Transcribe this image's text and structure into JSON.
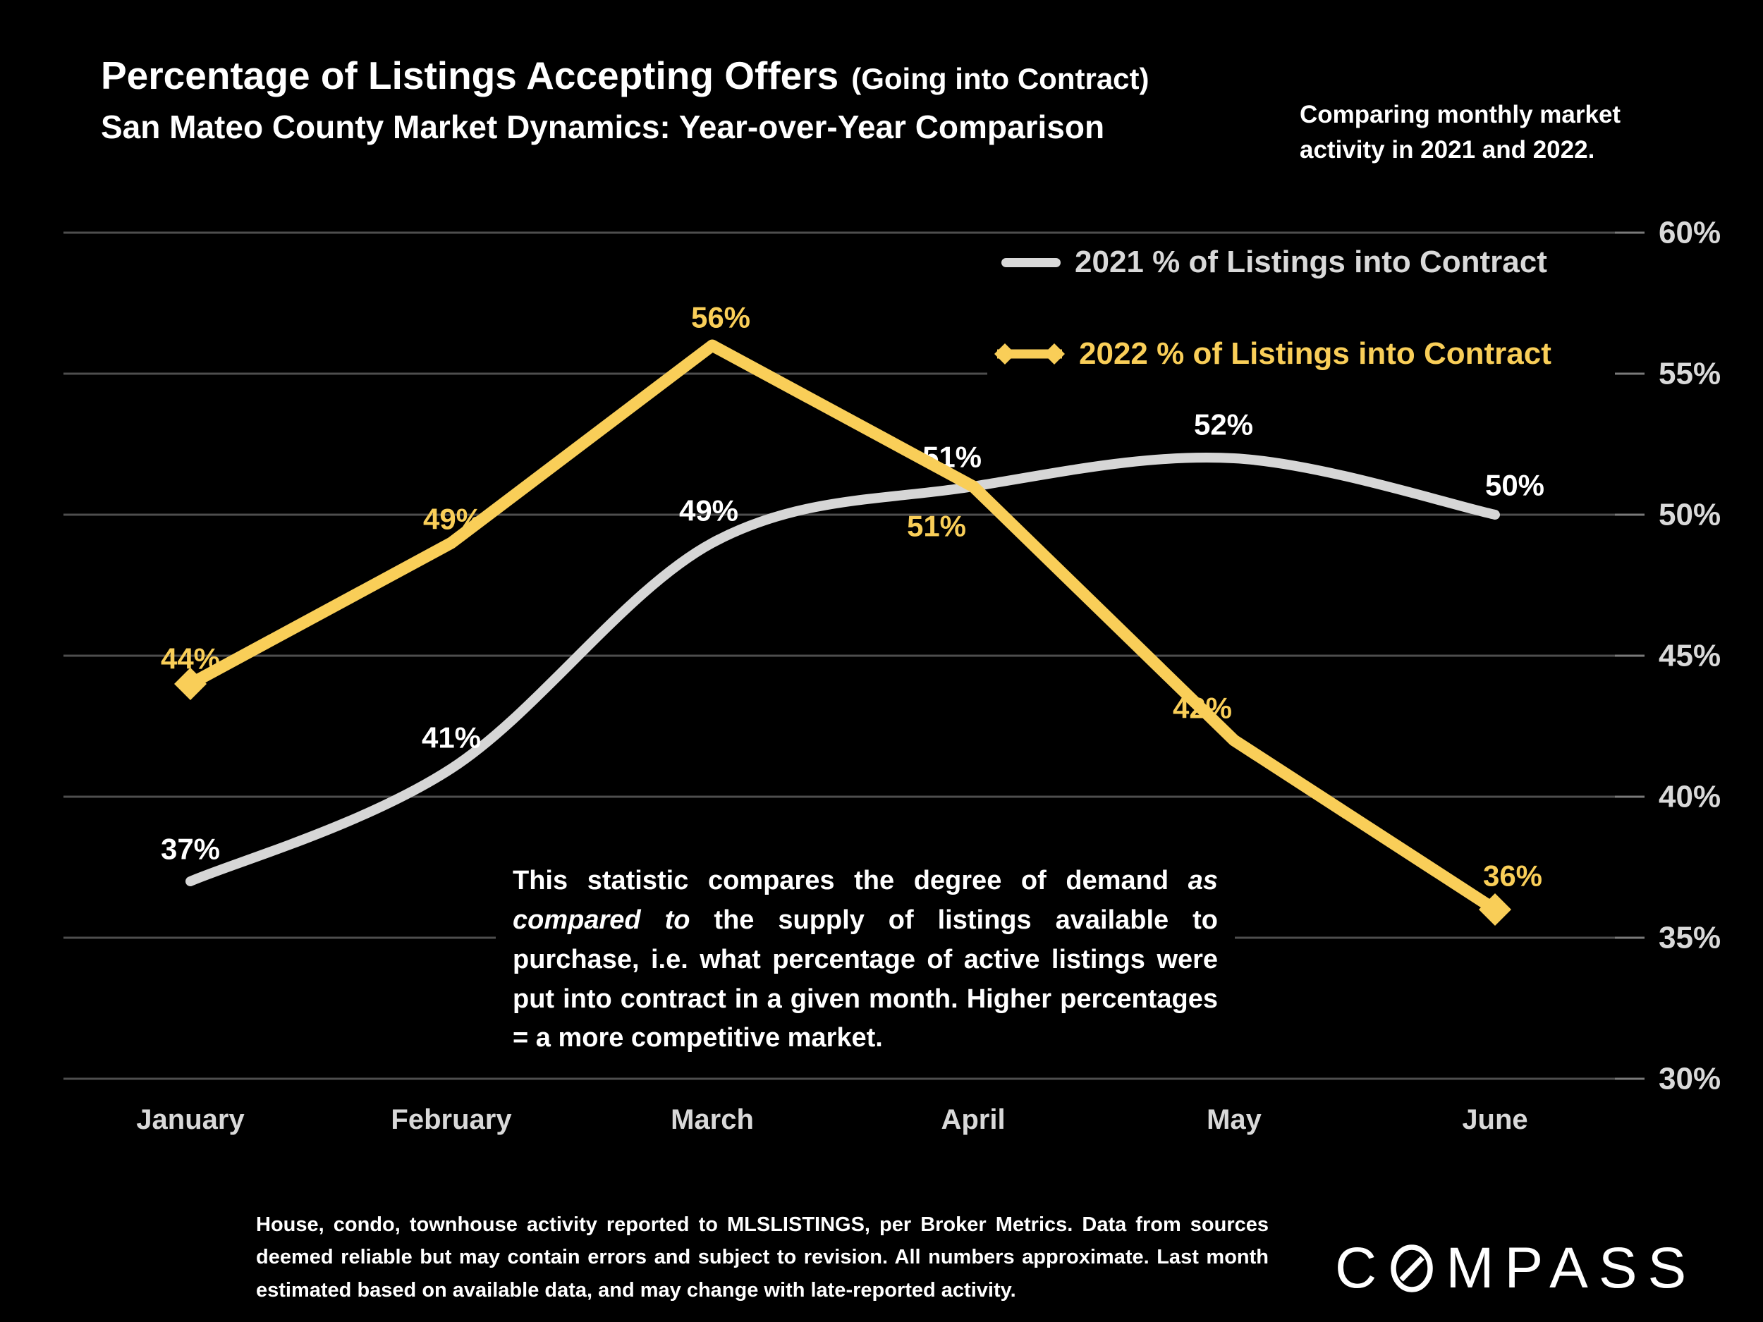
{
  "slide": {
    "title_main": "Percentage of Listings Accepting Offers",
    "title_paren": "(Going into Contract)",
    "subtitle": "San Mateo County Market Dynamics: Year-over-Year Comparison",
    "side_note_line1": "Comparing monthly market",
    "side_note_line2": "activity in 2021 and 2022."
  },
  "legend": {
    "rows": [
      {
        "label": "2021 % of Listings into Contract",
        "color": "#d9d9d9",
        "marker": "line"
      },
      {
        "label": "2022 % of Listings into Contract",
        "color": "#f9ce58",
        "marker": "diamond-line"
      }
    ]
  },
  "chart_data": {
    "type": "line",
    "categories": [
      "January",
      "February",
      "March",
      "April",
      "May",
      "June"
    ],
    "series": [
      {
        "name": "2021 % of Listings into Contract",
        "color": "#d6d6d6",
        "label_color": "#ffffff",
        "style": "smooth",
        "marker": "none",
        "values": [
          37,
          41,
          49,
          51,
          52,
          50
        ],
        "labels": [
          "37%",
          "41%",
          "49%",
          "51%",
          "52%",
          "50%"
        ]
      },
      {
        "name": "2022 % of Listings into Contract",
        "color": "#f9ce58",
        "label_color": "#f9ce58",
        "style": "straight",
        "marker": "diamond-ends",
        "values": [
          44,
          49,
          56,
          51,
          42,
          36
        ],
        "labels": [
          "44%",
          "49%",
          "56%",
          "51%",
          "42%",
          "36%"
        ]
      }
    ],
    "y_axis": {
      "min": 30,
      "max": 60,
      "step": 5,
      "side": "right",
      "tick_labels": [
        "60%",
        "55%",
        "50%",
        "45%",
        "40%",
        "35%",
        "30%"
      ]
    },
    "grid": true,
    "legend_position": "top-right"
  },
  "description": {
    "pre": "This statistic compares the degree of demand ",
    "italic": "as compared to",
    "post": " the supply of listings available to purchase, i.e. what percentage of active listings were put into contract in a given month. Higher percentages = a more competitive market."
  },
  "footer": {
    "disclaimer": "House, condo, townhouse activity reported to MLSLISTINGS, per Broker Metrics. Data from sources deemed reliable but may contain errors and subject to revision. All numbers approximate. Last month estimated based on available data, and may change with late-reported activity.",
    "brand": "COMPASS"
  },
  "colors": {
    "background": "#000000",
    "accent_yellow": "#f9ce58",
    "series_gray": "#d6d6d6",
    "text_white": "#ffffff",
    "text_gray": "#d9d9d9",
    "gridline": "#4e4e4e"
  }
}
